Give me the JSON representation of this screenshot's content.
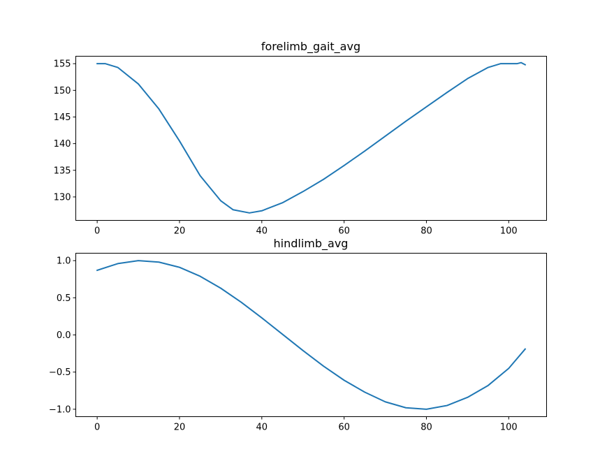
{
  "chart_data": [
    {
      "type": "line",
      "title": "forelimb_gait_avg",
      "xlabel": "",
      "ylabel": "",
      "xlim": [
        -5.2,
        109.2
      ],
      "ylim": [
        125.6,
        156.4
      ],
      "xticks": [
        0,
        20,
        40,
        60,
        80,
        100
      ],
      "xtick_labels": [
        "0",
        "20",
        "40",
        "60",
        "80",
        "100"
      ],
      "yticks": [
        130,
        135,
        140,
        145,
        150,
        155
      ],
      "ytick_labels": [
        "130",
        "135",
        "140",
        "145",
        "150",
        "155"
      ],
      "grid": false,
      "series": [
        {
          "color": "#1f77b4",
          "x": [
            0,
            2,
            5,
            10,
            15,
            20,
            25,
            30,
            33,
            37,
            40,
            45,
            50,
            55,
            60,
            65,
            70,
            75,
            80,
            85,
            90,
            95,
            98,
            100,
            102,
            103,
            104
          ],
          "y": [
            155,
            155,
            154.3,
            151.2,
            146.5,
            140.5,
            134.0,
            129.3,
            127.6,
            127.0,
            127.4,
            128.9,
            131.0,
            133.3,
            135.9,
            138.6,
            141.4,
            144.2,
            146.9,
            149.6,
            152.2,
            154.3,
            155.0,
            155.0,
            155.0,
            155.2,
            154.8
          ]
        }
      ]
    },
    {
      "type": "line",
      "title": "hindlimb_avg",
      "xlabel": "",
      "ylabel": "",
      "xlim": [
        -5.2,
        109.2
      ],
      "ylim": [
        -1.1,
        1.1
      ],
      "xticks": [
        0,
        20,
        40,
        60,
        80,
        100
      ],
      "xtick_labels": [
        "0",
        "20",
        "40",
        "60",
        "80",
        "100"
      ],
      "yticks": [
        -1.0,
        -0.5,
        0.0,
        0.5,
        1.0
      ],
      "ytick_labels": [
        "−1.0",
        "−0.5",
        "0.0",
        "0.5",
        "1.0"
      ],
      "grid": false,
      "series": [
        {
          "color": "#1f77b4",
          "x": [
            0,
            5,
            10,
            15,
            20,
            25,
            30,
            35,
            40,
            45,
            50,
            55,
            60,
            65,
            70,
            75,
            80,
            85,
            90,
            95,
            100,
            104
          ],
          "y": [
            0.87,
            0.96,
            1.0,
            0.98,
            0.91,
            0.79,
            0.63,
            0.44,
            0.23,
            0.01,
            -0.21,
            -0.42,
            -0.61,
            -0.77,
            -0.9,
            -0.98,
            -1.0,
            -0.95,
            -0.84,
            -0.68,
            -0.45,
            -0.19
          ]
        }
      ]
    }
  ]
}
